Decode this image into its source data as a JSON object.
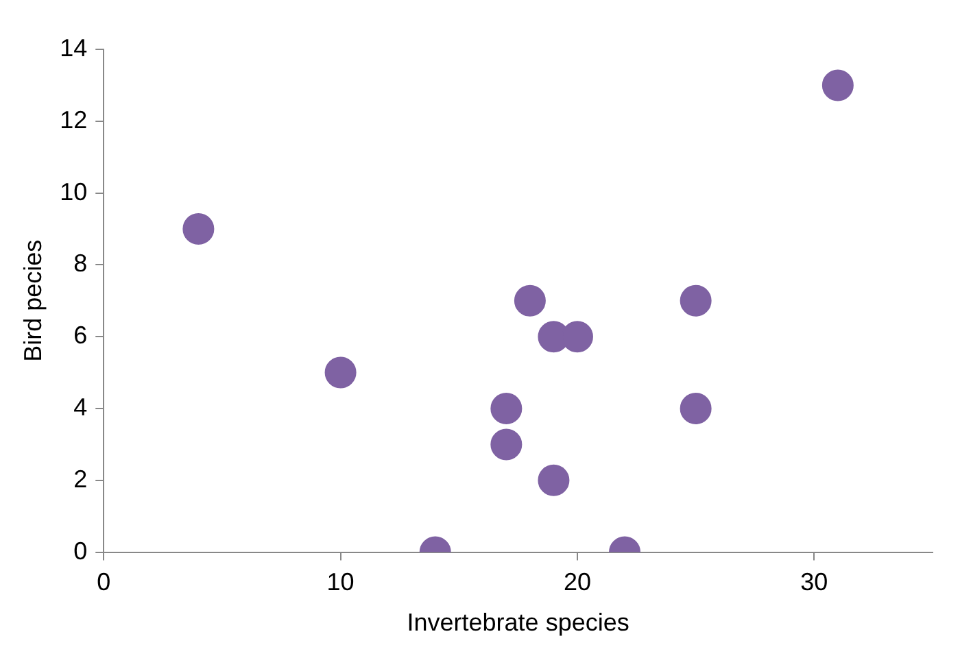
{
  "chart_data": {
    "type": "scatter",
    "xlabel": "Invertebrate species",
    "ylabel": "Bird pecies",
    "x": [
      4,
      10,
      14,
      17,
      17,
      18,
      19,
      20,
      19,
      22,
      25,
      25,
      31
    ],
    "values": [
      9,
      5,
      0,
      4,
      3,
      7,
      6,
      6,
      2,
      0,
      7,
      4,
      13
    ],
    "color": "#7f62a3",
    "marker": "circle",
    "grid": false,
    "legend": false,
    "xlim": [
      0,
      35
    ],
    "xticks": [
      0,
      10,
      20,
      30
    ],
    "ylim": [
      0,
      14
    ],
    "yticks": [
      0,
      2,
      4,
      6,
      8,
      10,
      12,
      14
    ]
  }
}
